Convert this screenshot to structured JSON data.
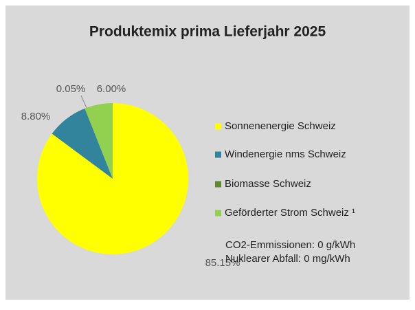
{
  "chart_data": {
    "type": "pie",
    "title": "Produktemix prima Lieferjahr 2025",
    "categories": [
      "Sonnenenergie Schweiz",
      "Windenergie nms Schweiz",
      "Biomasse Schweiz",
      "Geförderter Strom Schweiz ¹"
    ],
    "values": [
      85.15,
      8.8,
      0.05,
      6.0
    ],
    "value_labels": [
      "85.15%",
      "8.80%",
      "0.05%",
      "6.00%"
    ],
    "colors": [
      "#ffff00",
      "#31849b",
      "#5f8a30",
      "#92d050"
    ],
    "legend": "right",
    "annotations": [
      "CO2-Emmissionen: 0 g/kWh",
      "Nuklearer Abfall: 0 mg/kWh"
    ]
  }
}
